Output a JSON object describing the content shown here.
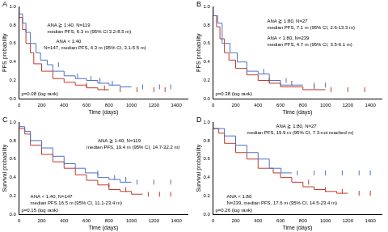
{
  "chart_data": [
    {
      "panel": "A",
      "type": "step",
      "x_label": "Time (days)",
      "y_label": "PFS probability",
      "xlim": [
        0,
        1500
      ],
      "xticks": [
        0,
        200,
        400,
        600,
        800,
        1000,
        1200,
        1400
      ],
      "ylim": [
        0,
        1
      ],
      "yticks": [
        {
          "value": 0,
          "label": "0.0"
        },
        0.2,
        0.4,
        0.6,
        0.8,
        {
          "value": 1,
          "label": "1.0"
        }
      ],
      "grid": false,
      "annotations": [
        "ANA ≧ 1:40, N=119",
        "median PFS, 6.3 m (95% CI 3.2-8.5 m)",
        "ANA < 1:40",
        "N=147, median PFS, 4.3 m (95% CI, 3.1-5.5 m)",
        "p=0.08 (log rank)"
      ],
      "series": [
        {
          "color": "#4f6fc4",
          "marker": "|",
          "x": [
            0,
            30,
            60,
            100,
            150,
            190,
            250,
            300,
            400,
            500,
            600,
            700,
            800,
            900,
            1000
          ],
          "values": [
            1,
            0.92,
            0.82,
            0.72,
            0.6,
            0.5,
            0.42,
            0.37,
            0.3,
            0.25,
            0.22,
            0.2,
            0.17,
            0.15,
            0.13
          ],
          "censored_x": [
            350,
            520,
            640,
            720,
            830,
            1100,
            1250,
            1350
          ]
        },
        {
          "color": "#c0392b",
          "marker": "|",
          "x": [
            0,
            30,
            60,
            100,
            130,
            200,
            300,
            400,
            500,
            600,
            700,
            800
          ],
          "values": [
            1,
            0.88,
            0.75,
            0.6,
            0.5,
            0.38,
            0.3,
            0.22,
            0.18,
            0.15,
            0.12,
            0.1
          ],
          "censored_x": [
            600,
            760,
            900,
            1050,
            1200,
            1300
          ]
        }
      ]
    },
    {
      "panel": "B",
      "type": "step",
      "x_label": "Time (days)",
      "y_label": "PFS probability",
      "xlim": [
        0,
        1500
      ],
      "xticks": [
        0,
        200,
        400,
        600,
        800,
        1000,
        1200,
        1400
      ],
      "ylim": [
        0,
        1
      ],
      "yticks": [
        {
          "value": 0,
          "label": "0.0"
        },
        0.2,
        0.4,
        0.6,
        0.8,
        {
          "value": 1,
          "label": "1.0"
        }
      ],
      "grid": false,
      "annotations": [
        "ANA ≧ 1:80, N=27",
        "median PFS, 7.1 m (95% CI, 2.6-13.3 m)",
        "ANA < 1:80, N=239",
        "median PFS, 4.7 m (95% CI, 3.5-6.1 m)",
        "p=0.38 (log rank)"
      ],
      "series": [
        {
          "color": "#4f6fc4",
          "marker": "|",
          "x": [
            0,
            40,
            80,
            150,
            215,
            300,
            400,
            500,
            600,
            800
          ],
          "values": [
            1,
            0.9,
            0.82,
            0.6,
            0.5,
            0.4,
            0.3,
            0.27,
            0.2,
            0.15
          ],
          "censored_x": [
            450,
            650,
            900,
            1000
          ]
        },
        {
          "color": "#c0392b",
          "marker": "|",
          "x": [
            0,
            30,
            60,
            100,
            140,
            200,
            300,
            400,
            500,
            600,
            800,
            1000
          ],
          "values": [
            1,
            0.9,
            0.78,
            0.65,
            0.5,
            0.42,
            0.33,
            0.26,
            0.2,
            0.17,
            0.13,
            0.1
          ],
          "censored_x": [
            500,
            700,
            900,
            1050,
            1200,
            1350
          ]
        }
      ]
    },
    {
      "panel": "C",
      "type": "step",
      "x_label": "Time (days)",
      "y_label": "Survival probability",
      "xlim": [
        0,
        1500
      ],
      "xticks": [
        0,
        200,
        400,
        600,
        800,
        1000,
        1200,
        1400
      ],
      "ylim": [
        0,
        1
      ],
      "yticks": [
        {
          "value": 0,
          "label": "0.0"
        },
        0.2,
        0.4,
        0.6,
        0.8,
        {
          "value": 1,
          "label": "1.0"
        }
      ],
      "grid": false,
      "annotations": [
        "ANA ≧ 1:40, N=119",
        "median PFS, 19.4 m (95% CI, 14.7-32.2 m)",
        "ANA < 1:40, N=147",
        "median PFS 16.5 m (95% CI, 11.1-23.4 m)",
        "p=0.15 (log rank)"
      ],
      "series": [
        {
          "color": "#4f6fc4",
          "marker": "|",
          "x": [
            0,
            50,
            100,
            200,
            300,
            400,
            500,
            590,
            700,
            800,
            900,
            1000
          ],
          "values": [
            1,
            0.95,
            0.9,
            0.8,
            0.72,
            0.63,
            0.55,
            0.5,
            0.45,
            0.4,
            0.38,
            0.35
          ],
          "censored_x": [
            700,
            850,
            950,
            1050,
            1200,
            1350
          ]
        },
        {
          "color": "#c0392b",
          "marker": "|",
          "x": [
            0,
            50,
            100,
            200,
            300,
            400,
            500,
            600,
            700,
            800,
            900,
            1000,
            1100
          ],
          "values": [
            1,
            0.93,
            0.87,
            0.75,
            0.65,
            0.57,
            0.5,
            0.43,
            0.37,
            0.32,
            0.27,
            0.25,
            0.22
          ],
          "censored_x": [
            800,
            950,
            1150,
            1250,
            1350
          ]
        }
      ]
    },
    {
      "panel": "D",
      "type": "step",
      "x_label": "Time (days)",
      "y_label": "Survival probability",
      "xlim": [
        0,
        1500
      ],
      "xticks": [
        0,
        200,
        400,
        600,
        800,
        1000,
        1200,
        1400
      ],
      "ylim": [
        0,
        1
      ],
      "yticks": [
        {
          "value": 0,
          "label": "0.0"
        },
        0.2,
        0.4,
        0.6,
        0.8,
        {
          "value": 1,
          "label": "1.0"
        }
      ],
      "grid": false,
      "annotations": [
        "ANA ≧ 1:80, N=27",
        "median PFS, 19.9 m (95% CI, 7.3-not reached m)",
        "ANA < 1:80",
        "N=239, median PFS, 17.6 m (95% CI, 14.5-23.4 m)",
        "p=0.26 (log rank)"
      ],
      "series": [
        {
          "color": "#4f6fc4",
          "marker": "|",
          "x": [
            0,
            100,
            200,
            300,
            400,
            500,
            605,
            700
          ],
          "values": [
            1,
            0.93,
            0.85,
            0.75,
            0.67,
            0.6,
            0.5,
            0.45
          ],
          "censored_x": [
            750,
            900,
            1000,
            1150,
            1300,
            1400
          ]
        },
        {
          "color": "#c0392b",
          "marker": "|",
          "x": [
            0,
            50,
            100,
            200,
            300,
            400,
            535,
            600,
            700,
            800,
            900,
            1000,
            1100,
            1200
          ],
          "values": [
            1,
            0.93,
            0.88,
            0.77,
            0.67,
            0.6,
            0.5,
            0.45,
            0.4,
            0.35,
            0.3,
            0.27,
            0.25,
            0.23
          ],
          "censored_x": [
            850,
            1000,
            1150,
            1300,
            1400
          ]
        }
      ]
    }
  ]
}
